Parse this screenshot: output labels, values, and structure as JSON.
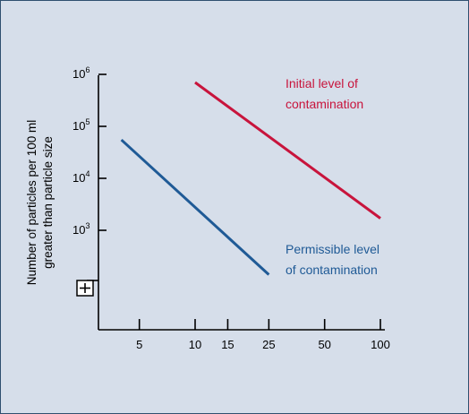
{
  "chart_data": {
    "type": "line",
    "title": "",
    "ylabel": [
      "Number of particles per 100 ml",
      "greater than particle size"
    ],
    "xlabel": "",
    "x_ticks": [
      5,
      10,
      15,
      25,
      50,
      100
    ],
    "y_ticks": [
      {
        "value": 1000,
        "base": "10",
        "exp": "3"
      },
      {
        "value": 10000,
        "base": "10",
        "exp": "4"
      },
      {
        "value": 100000,
        "base": "10",
        "exp": "5"
      },
      {
        "value": 1000000,
        "base": "10",
        "exp": "6"
      }
    ],
    "x_scale": "log",
    "y_scale": "log",
    "grid": false,
    "series": [
      {
        "name": [
          "Initial level of",
          "contamination"
        ],
        "color": "#c8143c",
        "points": [
          [
            10,
            700000
          ],
          [
            100,
            1700
          ]
        ]
      },
      {
        "name": [
          "Permissible level",
          "of contamination"
        ],
        "color": "#1f5a96",
        "points": [
          [
            4,
            55000
          ],
          [
            25,
            140
          ]
        ]
      }
    ],
    "extra_icon": "plus-in-box-icon"
  }
}
